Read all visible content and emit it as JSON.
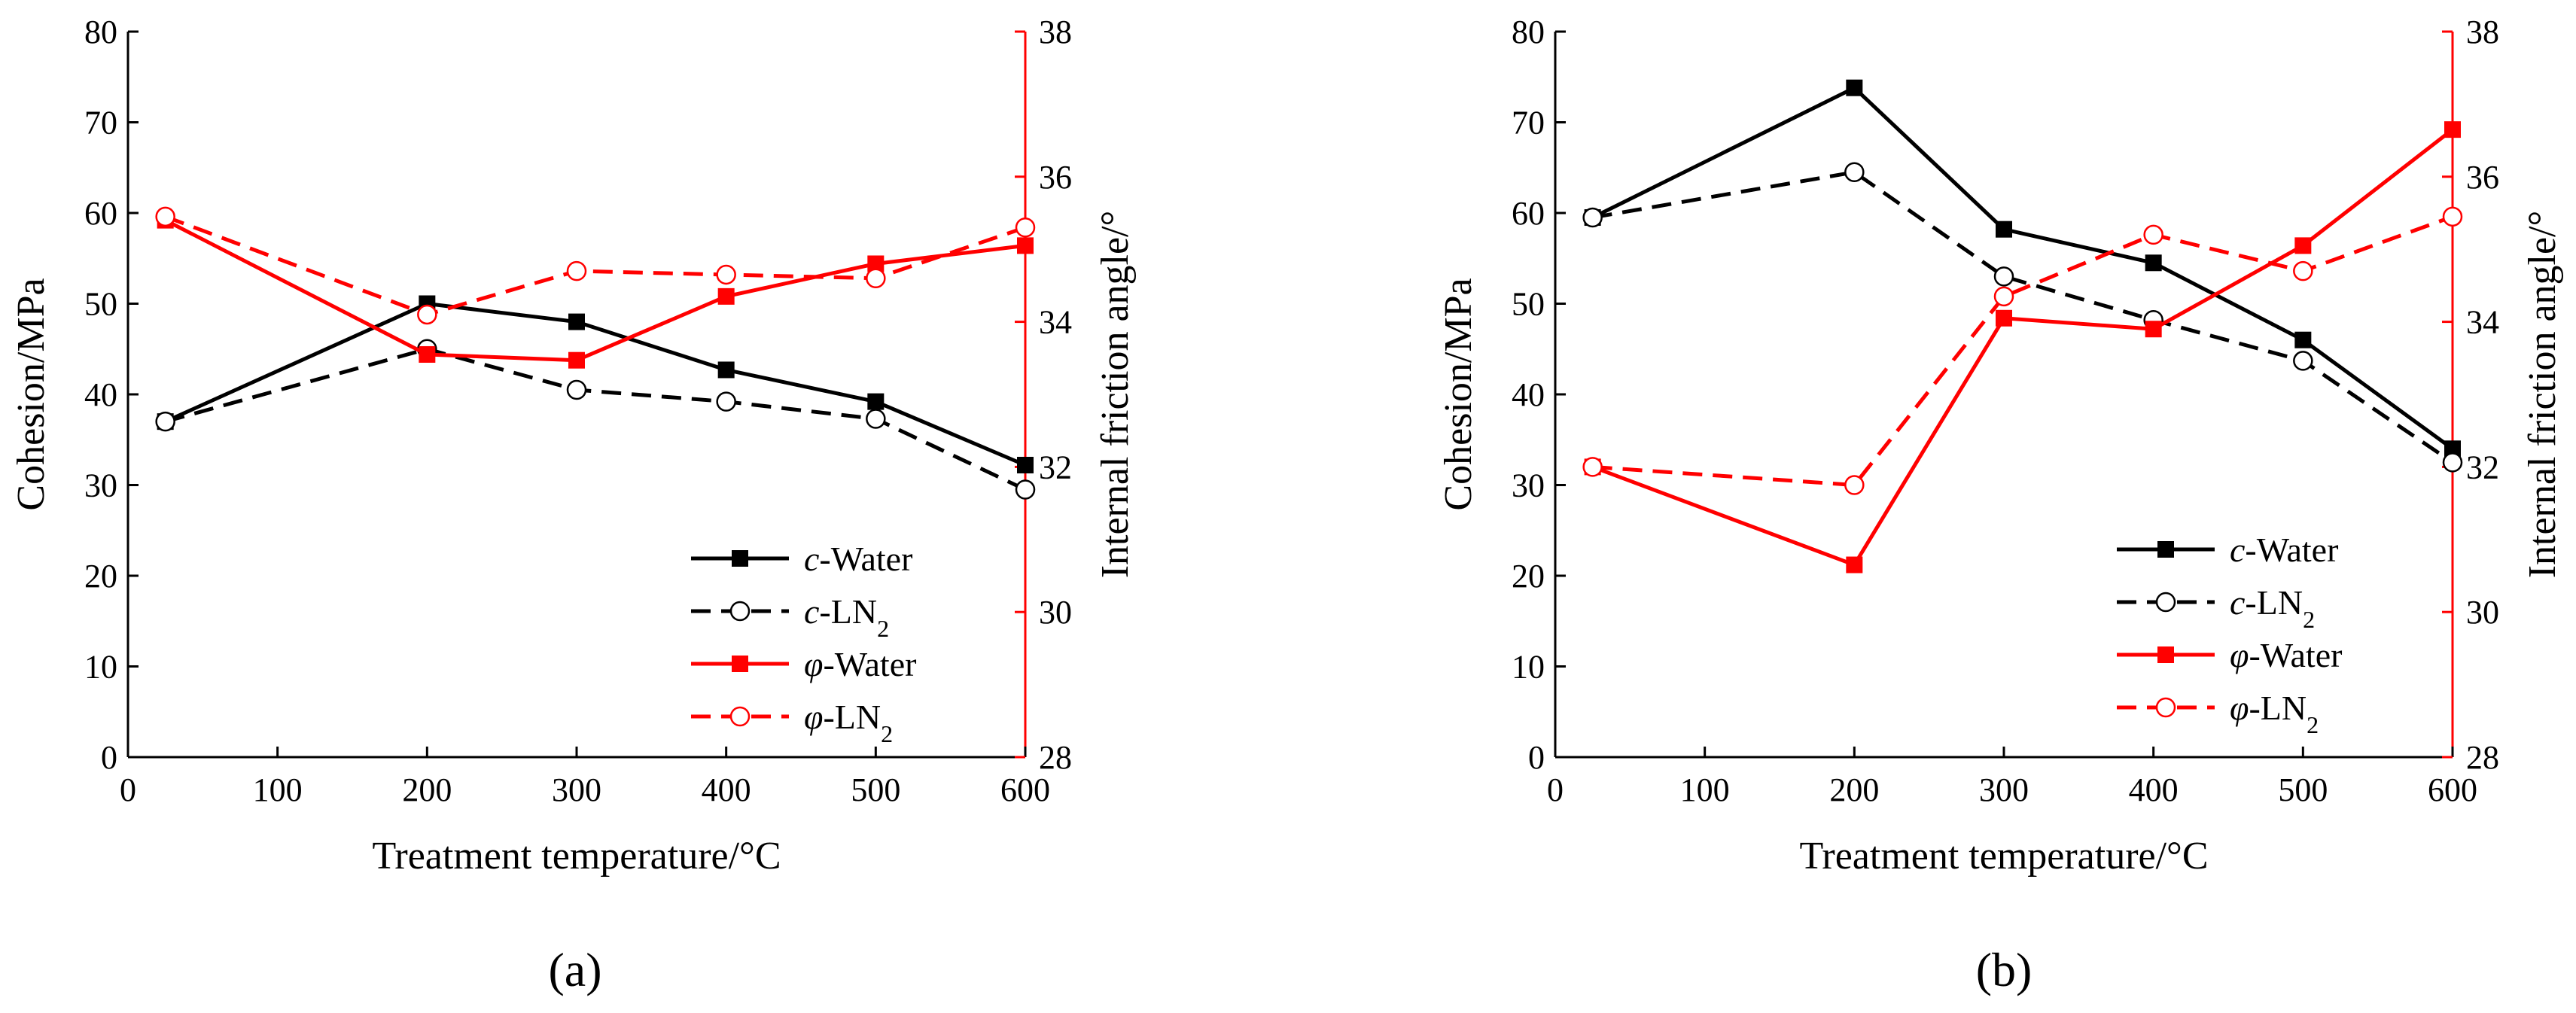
{
  "colors": {
    "water_c": "#000000",
    "ln2_c": "#000000",
    "water_phi": "#ff0000",
    "ln2_phi": "#ff0000"
  },
  "chart_data": [
    {
      "type": "line",
      "panel_label": "(a)",
      "xlabel": "Treatment temperature/°C",
      "ylabel_left": "Cohesion/MPa",
      "ylabel_right": "Internal friction angle/°",
      "xlim": [
        0,
        600
      ],
      "ylim_left": [
        0,
        80
      ],
      "ylim_right": [
        28,
        38
      ],
      "xticks": [
        0,
        100,
        200,
        300,
        400,
        500,
        600
      ],
      "yticks_left": [
        0,
        10,
        20,
        30,
        40,
        50,
        60,
        70,
        80
      ],
      "yticks_right": [
        28,
        30,
        32,
        34,
        36,
        38
      ],
      "legend_position": "lower-right",
      "x": [
        25,
        200,
        300,
        400,
        500,
        600
      ],
      "series": [
        {
          "name_prefix": "c",
          "name_suffix": "-Water",
          "subscript": "",
          "axis": "left",
          "color": "#000000",
          "dashed": false,
          "marker": "filled-square",
          "values": [
            37.0,
            50.0,
            48.0,
            42.7,
            39.2,
            32.2
          ]
        },
        {
          "name_prefix": "c",
          "name_suffix": "-LN",
          "subscript": "2",
          "axis": "left",
          "color": "#000000",
          "dashed": true,
          "marker": "open-circle",
          "values": [
            37.0,
            45.0,
            40.5,
            39.2,
            37.3,
            29.5
          ]
        },
        {
          "name_prefix": "φ",
          "name_suffix": "-Water",
          "subscript": "",
          "axis": "right",
          "color": "#ff0000",
          "dashed": false,
          "marker": "filled-square",
          "values": [
            35.4,
            33.55,
            33.47,
            34.35,
            34.8,
            35.05
          ]
        },
        {
          "name_prefix": "φ",
          "name_suffix": "-LN",
          "subscript": "2",
          "axis": "right",
          "color": "#ff0000",
          "dashed": true,
          "marker": "open-circle",
          "values": [
            35.45,
            34.1,
            34.7,
            34.65,
            34.6,
            35.3
          ]
        }
      ]
    },
    {
      "type": "line",
      "panel_label": "(b)",
      "xlabel": "Treatment temperature/°C",
      "ylabel_left": "Cohesion/MPa",
      "ylabel_right": "Internal friction angle/°",
      "xlim": [
        0,
        600
      ],
      "ylim_left": [
        0,
        80
      ],
      "ylim_right": [
        28,
        38
      ],
      "xticks": [
        0,
        100,
        200,
        300,
        400,
        500,
        600
      ],
      "yticks_left": [
        0,
        10,
        20,
        30,
        40,
        50,
        60,
        70,
        80
      ],
      "yticks_right": [
        28,
        30,
        32,
        34,
        36,
        38
      ],
      "legend_position": "lower-right",
      "x": [
        25,
        200,
        300,
        400,
        500,
        600
      ],
      "series": [
        {
          "name_prefix": "c",
          "name_suffix": "-Water",
          "subscript": "",
          "axis": "left",
          "color": "#000000",
          "dashed": false,
          "marker": "filled-square",
          "values": [
            59.5,
            73.8,
            58.2,
            54.5,
            46.0,
            34.0
          ]
        },
        {
          "name_prefix": "c",
          "name_suffix": "-LN",
          "subscript": "2",
          "axis": "left",
          "color": "#000000",
          "dashed": true,
          "marker": "open-circle",
          "values": [
            59.5,
            64.5,
            53.0,
            48.2,
            43.7,
            32.5
          ]
        },
        {
          "name_prefix": "φ",
          "name_suffix": "-Water",
          "subscript": "",
          "axis": "right",
          "color": "#ff0000",
          "dashed": false,
          "marker": "filled-square",
          "values": [
            32.0,
            30.65,
            34.05,
            33.9,
            35.05,
            36.65
          ]
        },
        {
          "name_prefix": "φ",
          "name_suffix": "-LN",
          "subscript": "2",
          "axis": "right",
          "color": "#ff0000",
          "dashed": true,
          "marker": "open-circle",
          "values": [
            32.0,
            31.75,
            34.35,
            35.2,
            34.7,
            35.45
          ]
        }
      ]
    }
  ]
}
